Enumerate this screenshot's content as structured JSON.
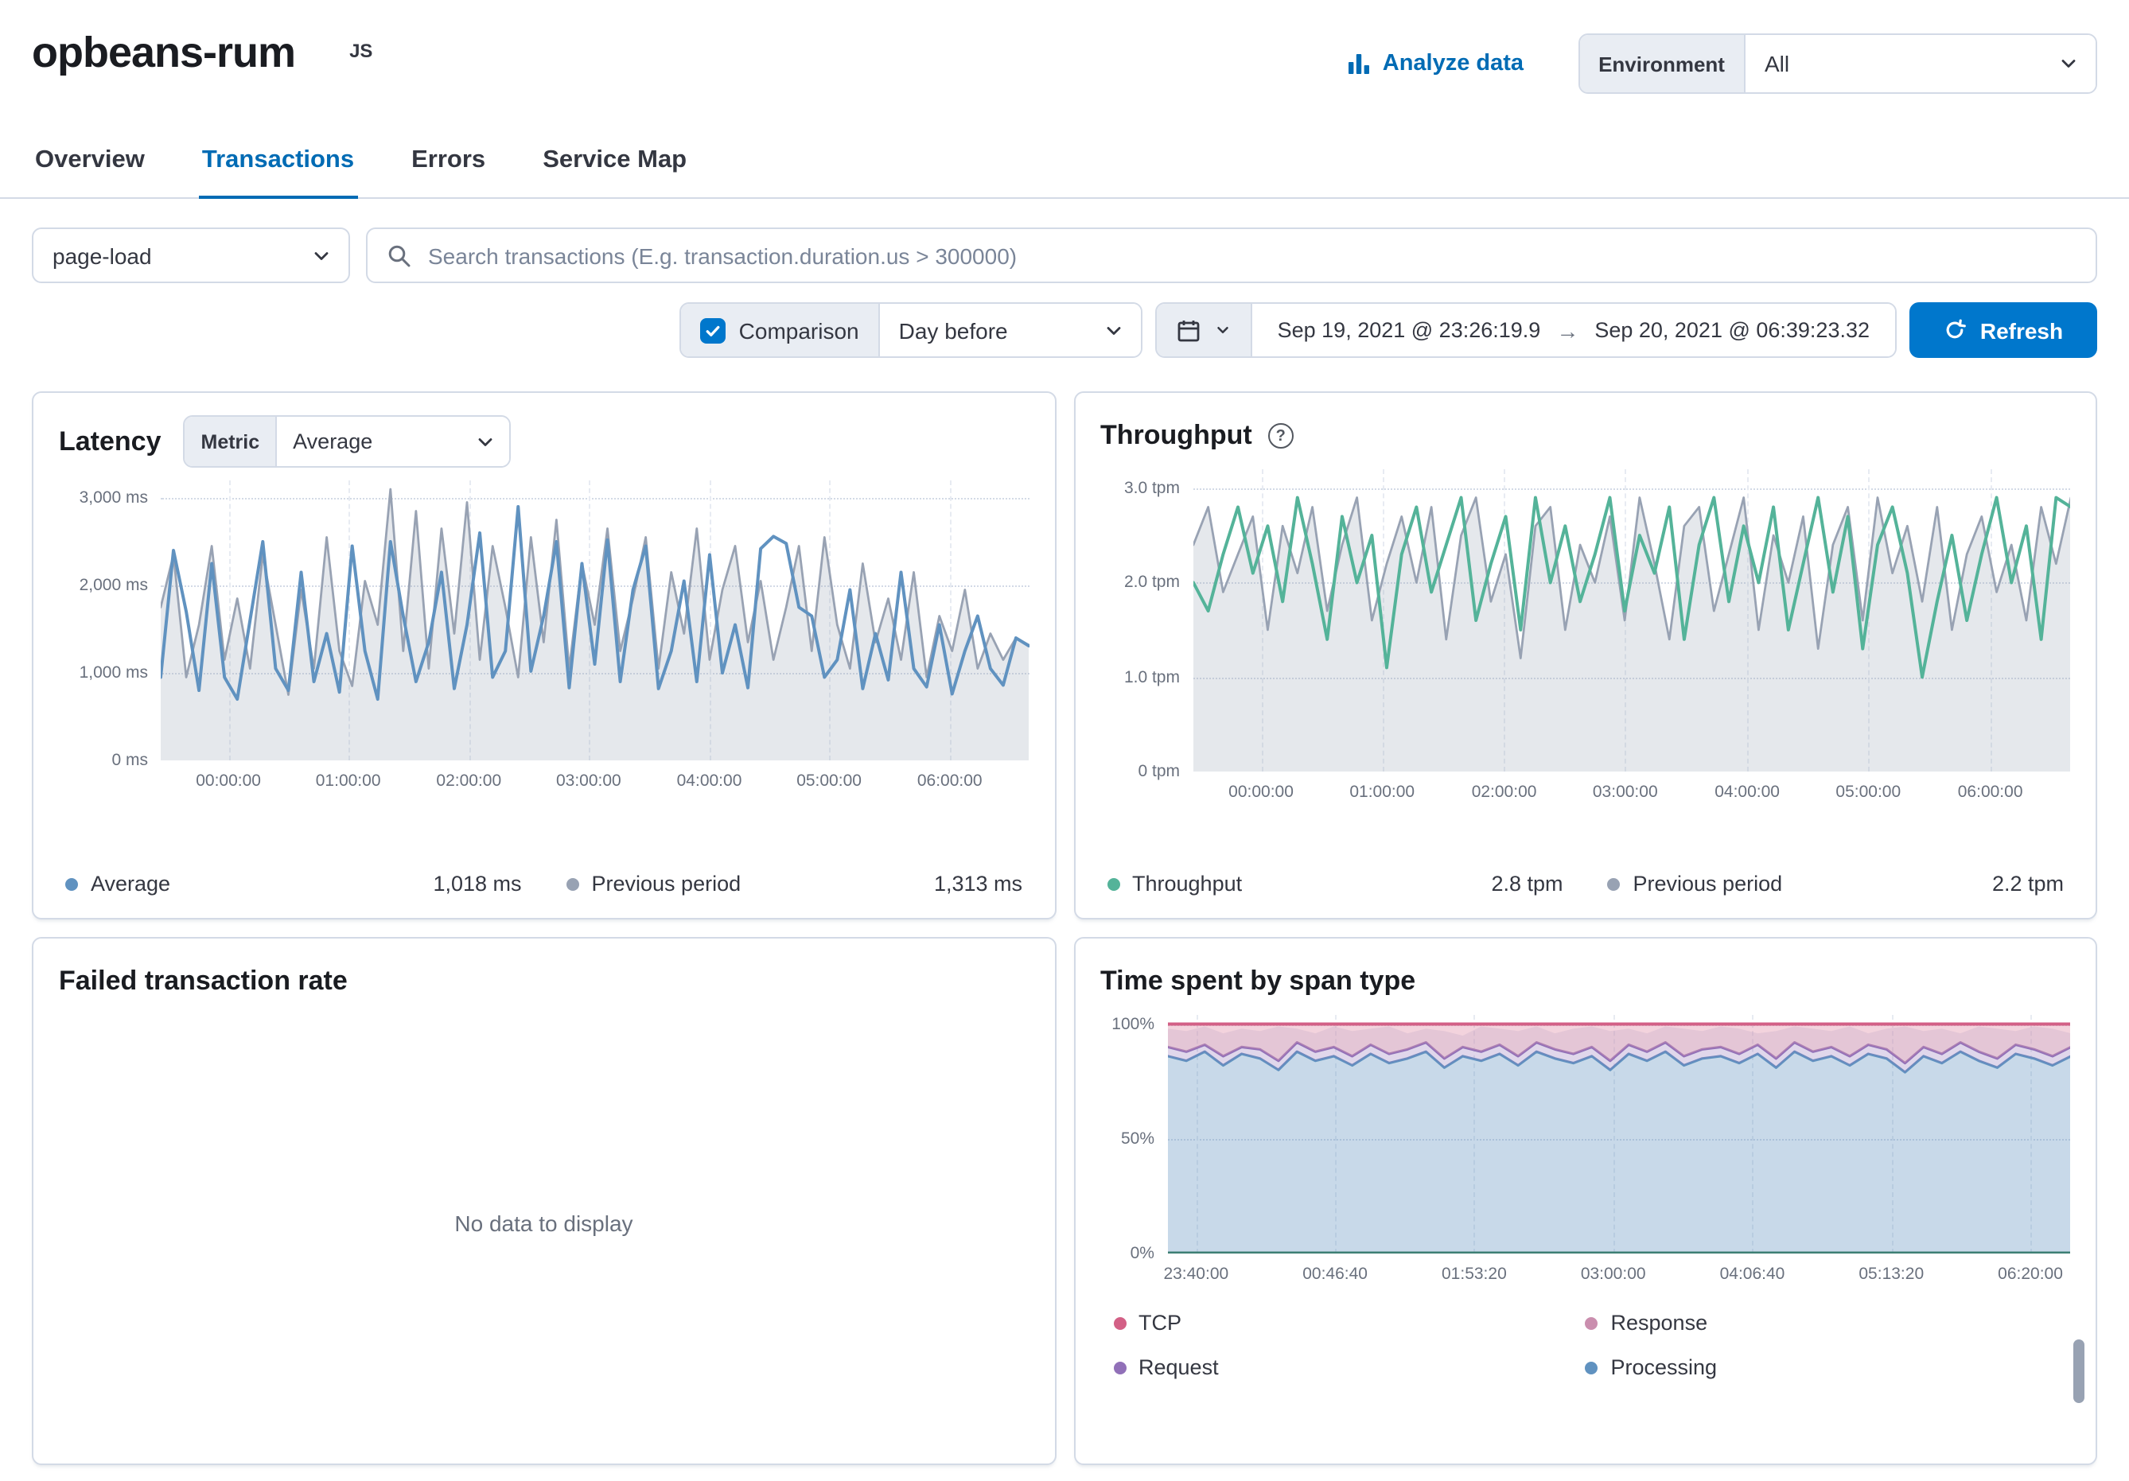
{
  "colors": {
    "accent": "#0077cc",
    "link": "#006bb4",
    "border": "#d3dae6"
  },
  "icons": {
    "refresh": "circular-arrow",
    "date_arrow": "→",
    "help": "?",
    "analyze": "bar-chart",
    "search": "magnifier",
    "calendar": "calendar",
    "chevron": "chevron-down",
    "check": "checkmark"
  },
  "header": {
    "title": "opbeans-rum",
    "badge": "JS",
    "analyze_label": "Analyze data",
    "environment_label": "Environment",
    "environment_value": "All"
  },
  "tabs": [
    {
      "label": "Overview",
      "active": false
    },
    {
      "label": "Transactions",
      "active": true
    },
    {
      "label": "Errors",
      "active": false
    },
    {
      "label": "Service Map",
      "active": false
    }
  ],
  "filters": {
    "transaction_type": "page-load",
    "search_placeholder": "Search transactions (E.g. transaction.duration.us > 300000)",
    "comparison_label": "Comparison",
    "comparison_checked": true,
    "comparison_value": "Day before",
    "date_start": "Sep 19, 2021 @ 23:26:19.9",
    "date_arrow": "→",
    "date_end": "Sep 20, 2021 @ 06:39:23.32",
    "refresh_label": "Refresh"
  },
  "chart_data": [
    {
      "id": "latency",
      "type": "line",
      "title": "Latency",
      "metric_label": "Metric",
      "metric_value": "Average",
      "ylabel": "ms",
      "ylim": [
        0,
        3200
      ],
      "yticks": [
        {
          "v": 0,
          "label": "0 ms"
        },
        {
          "v": 1000,
          "label": "1,000 ms"
        },
        {
          "v": 2000,
          "label": "2,000 ms"
        },
        {
          "v": 3000,
          "label": "3,000 ms"
        }
      ],
      "xticks": [
        {
          "f": 0.078,
          "label": "00:00:00"
        },
        {
          "f": 0.216,
          "label": "01:00:00"
        },
        {
          "f": 0.355,
          "label": "02:00:00"
        },
        {
          "f": 0.493,
          "label": "03:00:00"
        },
        {
          "f": 0.632,
          "label": "04:00:00"
        },
        {
          "f": 0.77,
          "label": "05:00:00"
        },
        {
          "f": 0.909,
          "label": "06:00:00"
        }
      ],
      "series": [
        {
          "name": "Previous period",
          "style": "area",
          "color": "#98a2b3",
          "fill": "rgba(152,162,179,0.25)",
          "width": 1.4,
          "values": [
            1750,
            2350,
            950,
            1550,
            2450,
            1150,
            1850,
            1050,
            2350,
            1550,
            750,
            1950,
            1050,
            2550,
            1250,
            850,
            2050,
            1550,
            3100,
            1250,
            2850,
            1050,
            2650,
            1450,
            2950,
            1150,
            2450,
            1750,
            950,
            2550,
            1350,
            2750,
            1050,
            2250,
            1550,
            2650,
            1250,
            1850,
            2550,
            1050,
            2150,
            1450,
            2650,
            1150,
            1950,
            2450,
            1350,
            2050,
            1150,
            1750,
            2450,
            1250,
            2550,
            1550,
            1050,
            2250,
            1350,
            1850,
            1150,
            2150,
            950,
            1650,
            1250,
            1950,
            1050,
            1450,
            1150,
            1400,
            1320
          ]
        },
        {
          "name": "Average",
          "style": "line",
          "color": "#6092c0",
          "width": 2,
          "values": [
            950,
            2400,
            1700,
            800,
            2250,
            950,
            700,
            1600,
            2500,
            1050,
            800,
            2150,
            900,
            1450,
            780,
            2450,
            1250,
            700,
            2500,
            1650,
            900,
            1350,
            2150,
            820,
            1550,
            2600,
            950,
            1250,
            2900,
            1020,
            1650,
            2500,
            830,
            2250,
            1100,
            2520,
            900,
            1950,
            2450,
            820,
            1250,
            2050,
            900,
            2350,
            1000,
            1550,
            830,
            2420,
            2560,
            2480,
            1750,
            1650,
            950,
            1150,
            1950,
            820,
            1450,
            920,
            2150,
            1050,
            840,
            1550,
            760,
            1250,
            1650,
            1050,
            860,
            1400,
            1310
          ]
        }
      ],
      "legend": [
        {
          "label": "Average",
          "value": "1,018 ms",
          "color": "#6092c0"
        },
        {
          "label": "Previous period",
          "value": "1,313 ms",
          "color": "#98a2b3"
        }
      ]
    },
    {
      "id": "throughput",
      "type": "line",
      "title": "Throughput",
      "ylabel": "tpm",
      "ylim": [
        0,
        3.2
      ],
      "yticks": [
        {
          "v": 0,
          "label": "0 tpm"
        },
        {
          "v": 1,
          "label": "1.0 tpm"
        },
        {
          "v": 2,
          "label": "2.0 tpm"
        },
        {
          "v": 3,
          "label": "3.0 tpm"
        }
      ],
      "xticks": [
        {
          "f": 0.078,
          "label": "00:00:00"
        },
        {
          "f": 0.216,
          "label": "01:00:00"
        },
        {
          "f": 0.355,
          "label": "02:00:00"
        },
        {
          "f": 0.493,
          "label": "03:00:00"
        },
        {
          "f": 0.632,
          "label": "04:00:00"
        },
        {
          "f": 0.77,
          "label": "05:00:00"
        },
        {
          "f": 0.909,
          "label": "06:00:00"
        }
      ],
      "series": [
        {
          "name": "Previous period",
          "style": "area",
          "color": "#98a2b3",
          "fill": "rgba(152,162,179,0.25)",
          "width": 1.4,
          "values": [
            2.4,
            2.8,
            1.9,
            2.3,
            2.7,
            1.5,
            2.6,
            2.1,
            2.8,
            1.7,
            2.4,
            2.9,
            1.6,
            2.2,
            2.7,
            2.0,
            2.8,
            1.4,
            2.5,
            2.9,
            1.8,
            2.3,
            1.2,
            2.6,
            2.8,
            1.5,
            2.4,
            2.0,
            2.7,
            1.6,
            2.9,
            2.2,
            1.4,
            2.6,
            2.8,
            1.7,
            2.3,
            2.9,
            1.5,
            2.5,
            2.0,
            2.7,
            1.3,
            2.4,
            2.8,
            1.6,
            2.9,
            2.1,
            2.6,
            1.8,
            2.8,
            1.5,
            2.3,
            2.7,
            1.9,
            2.4,
            1.6,
            2.8,
            2.2,
            2.9
          ]
        },
        {
          "name": "Throughput",
          "style": "line",
          "color": "#54b399",
          "width": 2,
          "values": [
            2.0,
            1.7,
            2.3,
            2.8,
            2.1,
            2.6,
            1.8,
            2.9,
            2.2,
            1.4,
            2.7,
            2.0,
            2.5,
            1.1,
            2.3,
            2.8,
            1.9,
            2.4,
            2.9,
            1.6,
            2.2,
            2.7,
            1.5,
            2.9,
            2.0,
            2.6,
            1.8,
            2.3,
            2.9,
            1.7,
            2.5,
            2.1,
            2.8,
            1.4,
            2.4,
            2.9,
            1.8,
            2.6,
            2.0,
            2.8,
            1.5,
            2.2,
            2.9,
            1.9,
            2.7,
            1.3,
            2.4,
            2.8,
            2.1,
            1.0,
            1.8,
            2.5,
            1.6,
            2.3,
            2.9,
            2.0,
            2.6,
            1.4,
            2.9,
            2.8
          ]
        }
      ],
      "legend": [
        {
          "label": "Throughput",
          "value": "2.8 tpm",
          "color": "#54b399"
        },
        {
          "label": "Previous period",
          "value": "2.2 tpm",
          "color": "#98a2b3"
        }
      ]
    },
    {
      "id": "failed-transaction-rate",
      "type": "empty",
      "title": "Failed transaction rate",
      "message": "No data to display"
    },
    {
      "id": "time-spent-by-span-type",
      "type": "stacked",
      "title": "Time spent by span type",
      "ylabel": "%",
      "ylim": [
        0,
        104
      ],
      "yticks": [
        {
          "v": 0,
          "label": "0%"
        },
        {
          "v": 50,
          "label": "50%"
        },
        {
          "v": 100,
          "label": "100%"
        }
      ],
      "xticks": [
        {
          "f": 0.032,
          "label": "23:40:00"
        },
        {
          "f": 0.186,
          "label": "00:46:40"
        },
        {
          "f": 0.34,
          "label": "01:53:20"
        },
        {
          "f": 0.494,
          "label": "03:00:00"
        },
        {
          "f": 0.648,
          "label": "04:06:40"
        },
        {
          "f": 0.802,
          "label": "05:13:20"
        },
        {
          "f": 0.956,
          "label": "06:20:00"
        }
      ],
      "bands": {
        "processing": [
          86,
          84,
          88,
          82,
          87,
          85,
          80,
          88,
          84,
          86,
          82,
          87,
          83,
          85,
          88,
          81,
          86,
          84,
          87,
          82,
          88,
          85,
          83,
          86,
          80,
          87,
          84,
          88,
          82,
          85,
          86,
          83,
          87,
          81,
          88,
          84,
          86,
          82,
          87,
          85,
          79,
          86,
          83,
          88,
          84,
          81,
          87,
          85,
          82,
          86
        ],
        "request": [
          90,
          88,
          91,
          86,
          90,
          89,
          84,
          92,
          88,
          90,
          86,
          91,
          87,
          89,
          92,
          85,
          90,
          88,
          91,
          86,
          92,
          89,
          87,
          90,
          84,
          91,
          88,
          92,
          86,
          89,
          90,
          87,
          91,
          85,
          92,
          88,
          90,
          86,
          91,
          89,
          83,
          90,
          87,
          92,
          88,
          85,
          91,
          89,
          86,
          90
        ],
        "response": [
          98,
          97,
          99,
          96,
          98,
          97,
          99,
          98,
          96,
          99,
          97,
          98,
          99,
          96,
          98,
          97,
          95,
          99,
          98,
          97,
          99,
          96,
          98,
          99,
          97,
          98,
          96,
          99,
          98,
          97,
          99,
          98,
          96,
          97,
          99,
          98,
          97,
          99,
          96,
          98,
          99,
          97,
          98,
          96,
          99,
          98,
          97,
          99,
          98,
          96
        ],
        "tcp": 100
      },
      "legend": [
        {
          "label": "TCP",
          "color": "#d36086"
        },
        {
          "label": "Request",
          "color": "#9170b8"
        },
        {
          "label": "Response",
          "color": "#ca8eae"
        },
        {
          "label": "Processing",
          "color": "#6092c0"
        }
      ]
    }
  ]
}
